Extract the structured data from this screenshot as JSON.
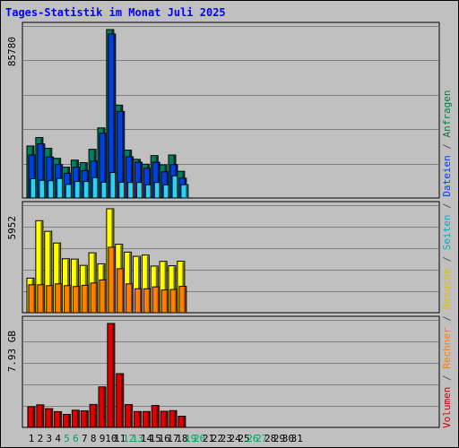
{
  "title": "Tages-Statistik im Monat Juli 2025",
  "side_legend": [
    {
      "text": "Volumen",
      "color": "#cc0000"
    },
    {
      "text": " / ",
      "color": "#555555"
    },
    {
      "text": "Rechner",
      "color": "#ff8000"
    },
    {
      "text": " / ",
      "color": "#555555"
    },
    {
      "text": "Besuche",
      "color": "#e0c000"
    },
    {
      "text": " / ",
      "color": "#555555"
    },
    {
      "text": "Seiten",
      "color": "#00b0c8"
    },
    {
      "text": " / ",
      "color": "#555555"
    },
    {
      "text": "Dateien",
      "color": "#0040ff"
    },
    {
      "text": " / ",
      "color": "#555555"
    },
    {
      "text": "Anfragen",
      "color": "#008040"
    }
  ],
  "chart_data": [
    {
      "type": "bar",
      "panel": "top",
      "ymax_label": "85780",
      "ylim": [
        0,
        85780
      ],
      "categories": [
        "1",
        "2",
        "3",
        "4",
        "5",
        "6",
        "7",
        "8",
        "9",
        "10",
        "11",
        "12",
        "13",
        "14",
        "15",
        "16",
        "17",
        "18",
        "19",
        "20",
        "21",
        "22",
        "23",
        "24",
        "25",
        "26",
        "27",
        "28",
        "29",
        "30",
        "31"
      ],
      "weekend_days": [
        "5",
        "6",
        "12",
        "13",
        "19",
        "20",
        "26",
        "27"
      ],
      "series": [
        {
          "name": "Anfragen",
          "color": "#008060",
          "values": [
            26500,
            30800,
            25300,
            20200,
            15700,
            19300,
            18000,
            24800,
            35700,
            85780,
            47300,
            24400,
            19700,
            17200,
            21600,
            16900,
            21900,
            13600,
            0,
            0,
            0,
            0,
            0,
            0,
            0,
            0,
            0,
            0,
            0,
            0,
            0
          ]
        },
        {
          "name": "Dateien",
          "color": "#0040e0",
          "values": [
            21900,
            27600,
            20900,
            17000,
            12600,
            15700,
            14000,
            18800,
            33000,
            83500,
            44100,
            21000,
            18200,
            15200,
            18200,
            13300,
            17000,
            10100,
            0,
            0,
            0,
            0,
            0,
            0,
            0,
            0,
            0,
            0,
            0,
            0,
            0
          ]
        },
        {
          "name": "Seiten",
          "color": "#30d0f0",
          "values": [
            9800,
            9000,
            8800,
            10000,
            6900,
            8400,
            8400,
            10400,
            8000,
            13000,
            8000,
            7900,
            7900,
            6700,
            7900,
            6700,
            11300,
            6800,
            0,
            0,
            0,
            0,
            0,
            0,
            0,
            0,
            0,
            0,
            0,
            0,
            0
          ]
        }
      ]
    },
    {
      "type": "bar",
      "panel": "middle",
      "ymax_label": "5952",
      "ylim": [
        0,
        5952
      ],
      "series": [
        {
          "name": "Besuche",
          "color": "#ffff00",
          "values": [
            1980,
            5270,
            4660,
            3990,
            3090,
            3070,
            2710,
            3430,
            2800,
            5952,
            3920,
            3470,
            3230,
            3300,
            2670,
            2940,
            2690,
            2950,
            0,
            0,
            0,
            0,
            0,
            0,
            0,
            0,
            0,
            0,
            0,
            0,
            0
          ]
        },
        {
          "name": "Rechner",
          "color": "#ff8000",
          "values": [
            1600,
            1600,
            1550,
            1650,
            1550,
            1500,
            1570,
            1700,
            1880,
            3750,
            2520,
            1650,
            1370,
            1370,
            1480,
            1300,
            1330,
            1510,
            0,
            0,
            0,
            0,
            0,
            0,
            0,
            0,
            0,
            0,
            0,
            0,
            0
          ]
        }
      ]
    },
    {
      "type": "bar",
      "panel": "bottom",
      "ymax_label": "7.93 GB",
      "ylim": [
        0,
        7.93
      ],
      "series": [
        {
          "name": "Volumen",
          "color": "#e00000",
          "values": [
            1.58,
            1.72,
            1.43,
            1.2,
            0.99,
            1.31,
            1.26,
            1.75,
            3.09,
            7.93,
            4.1,
            1.74,
            1.21,
            1.21,
            1.67,
            1.23,
            1.28,
            0.85,
            0,
            0,
            0,
            0,
            0,
            0,
            0,
            0,
            0,
            0,
            0,
            0,
            0
          ]
        }
      ]
    }
  ]
}
